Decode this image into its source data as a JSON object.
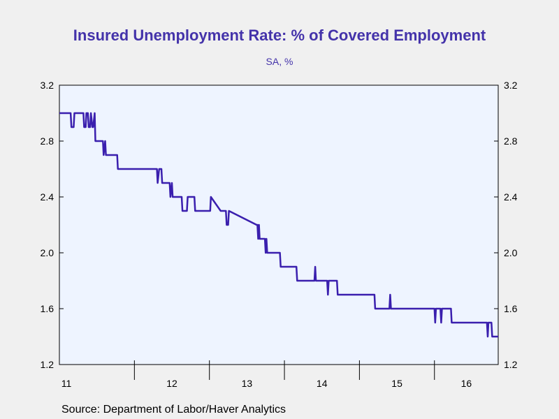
{
  "chart_data": {
    "type": "line",
    "title": "Insured Unemployment Rate: % of Covered Employment",
    "subtitle": "SA, %",
    "source": "Source:  Department of Labor/Haver Analytics",
    "ylim": [
      1.2,
      3.2
    ],
    "yticks": [
      1.2,
      1.6,
      2.0,
      2.4,
      2.8,
      3.2
    ],
    "ytick_labels": [
      "1.2",
      "1.6",
      "2.0",
      "2.4",
      "2.8",
      "3.2"
    ],
    "y_axis_right": true,
    "xlim": [
      2011.0,
      2016.85
    ],
    "xtick_labels": [
      "11",
      "12",
      "13",
      "14",
      "15",
      "16"
    ],
    "xtick_years": [
      2011,
      2012,
      2013,
      2014,
      2015,
      2016
    ],
    "grid": false,
    "colors": {
      "line": "#3a1fae",
      "plot_bg": "#eef4ff",
      "title": "#4433aa"
    },
    "series": [
      {
        "x": [
          2011.0,
          2011.15,
          2011.16,
          2011.19,
          2011.2,
          2011.32,
          2011.33,
          2011.35,
          2011.36,
          2011.38,
          2011.39,
          2011.41,
          2011.42,
          2011.44,
          2011.45,
          2011.47,
          2011.48,
          2011.58,
          2011.59,
          2011.61,
          2011.62,
          2011.64,
          2011.65,
          2011.77,
          2011.78,
          2012.0,
          2012.3,
          2012.31,
          2012.33,
          2012.36,
          2012.37,
          2012.47,
          2012.48,
          2012.5,
          2012.51,
          2012.63,
          2012.64,
          2012.7,
          2012.71,
          2012.8,
          2012.81,
          2013.0,
          2013.01,
          2013.02,
          2013.15,
          2013.16,
          2013.22,
          2013.23,
          2013.25,
          2013.26,
          2013.63,
          2013.64,
          2013.65,
          2013.66,
          2013.67,
          2013.74,
          2013.75,
          2013.76,
          2013.77,
          2013.94,
          2013.95,
          2014.16,
          2014.17,
          2014.4,
          2014.41,
          2014.42,
          2014.57,
          2014.58,
          2014.59,
          2014.7,
          2014.71,
          2015.2,
          2015.21,
          2015.4,
          2015.41,
          2015.42,
          2016.0,
          2016.01,
          2016.02,
          2016.03,
          2016.08,
          2016.09,
          2016.1,
          2016.11,
          2016.22,
          2016.23,
          2016.24,
          2016.7,
          2016.71,
          2016.72,
          2016.76,
          2016.77,
          2016.85
        ],
        "y": [
          3.0,
          3.0,
          2.9,
          2.9,
          3.0,
          3.0,
          2.9,
          2.9,
          3.0,
          3.0,
          2.9,
          2.9,
          3.0,
          2.9,
          2.9,
          3.0,
          2.8,
          2.8,
          2.7,
          2.8,
          2.7,
          2.7,
          2.7,
          2.7,
          2.6,
          2.6,
          2.6,
          2.5,
          2.6,
          2.6,
          2.5,
          2.5,
          2.4,
          2.5,
          2.4,
          2.4,
          2.3,
          2.3,
          2.4,
          2.4,
          2.3,
          2.3,
          2.3,
          2.4,
          2.3,
          2.3,
          2.3,
          2.2,
          2.2,
          2.3,
          2.2,
          2.2,
          2.1,
          2.2,
          2.1,
          2.1,
          2.0,
          2.1,
          2.0,
          2.0,
          1.9,
          1.9,
          1.8,
          1.8,
          1.9,
          1.8,
          1.8,
          1.7,
          1.8,
          1.8,
          1.7,
          1.7,
          1.6,
          1.6,
          1.7,
          1.6,
          1.6,
          1.5,
          1.6,
          1.6,
          1.6,
          1.5,
          1.6,
          1.6,
          1.6,
          1.5,
          1.5,
          1.5,
          1.4,
          1.5,
          1.5,
          1.4,
          1.4
        ]
      }
    ]
  }
}
